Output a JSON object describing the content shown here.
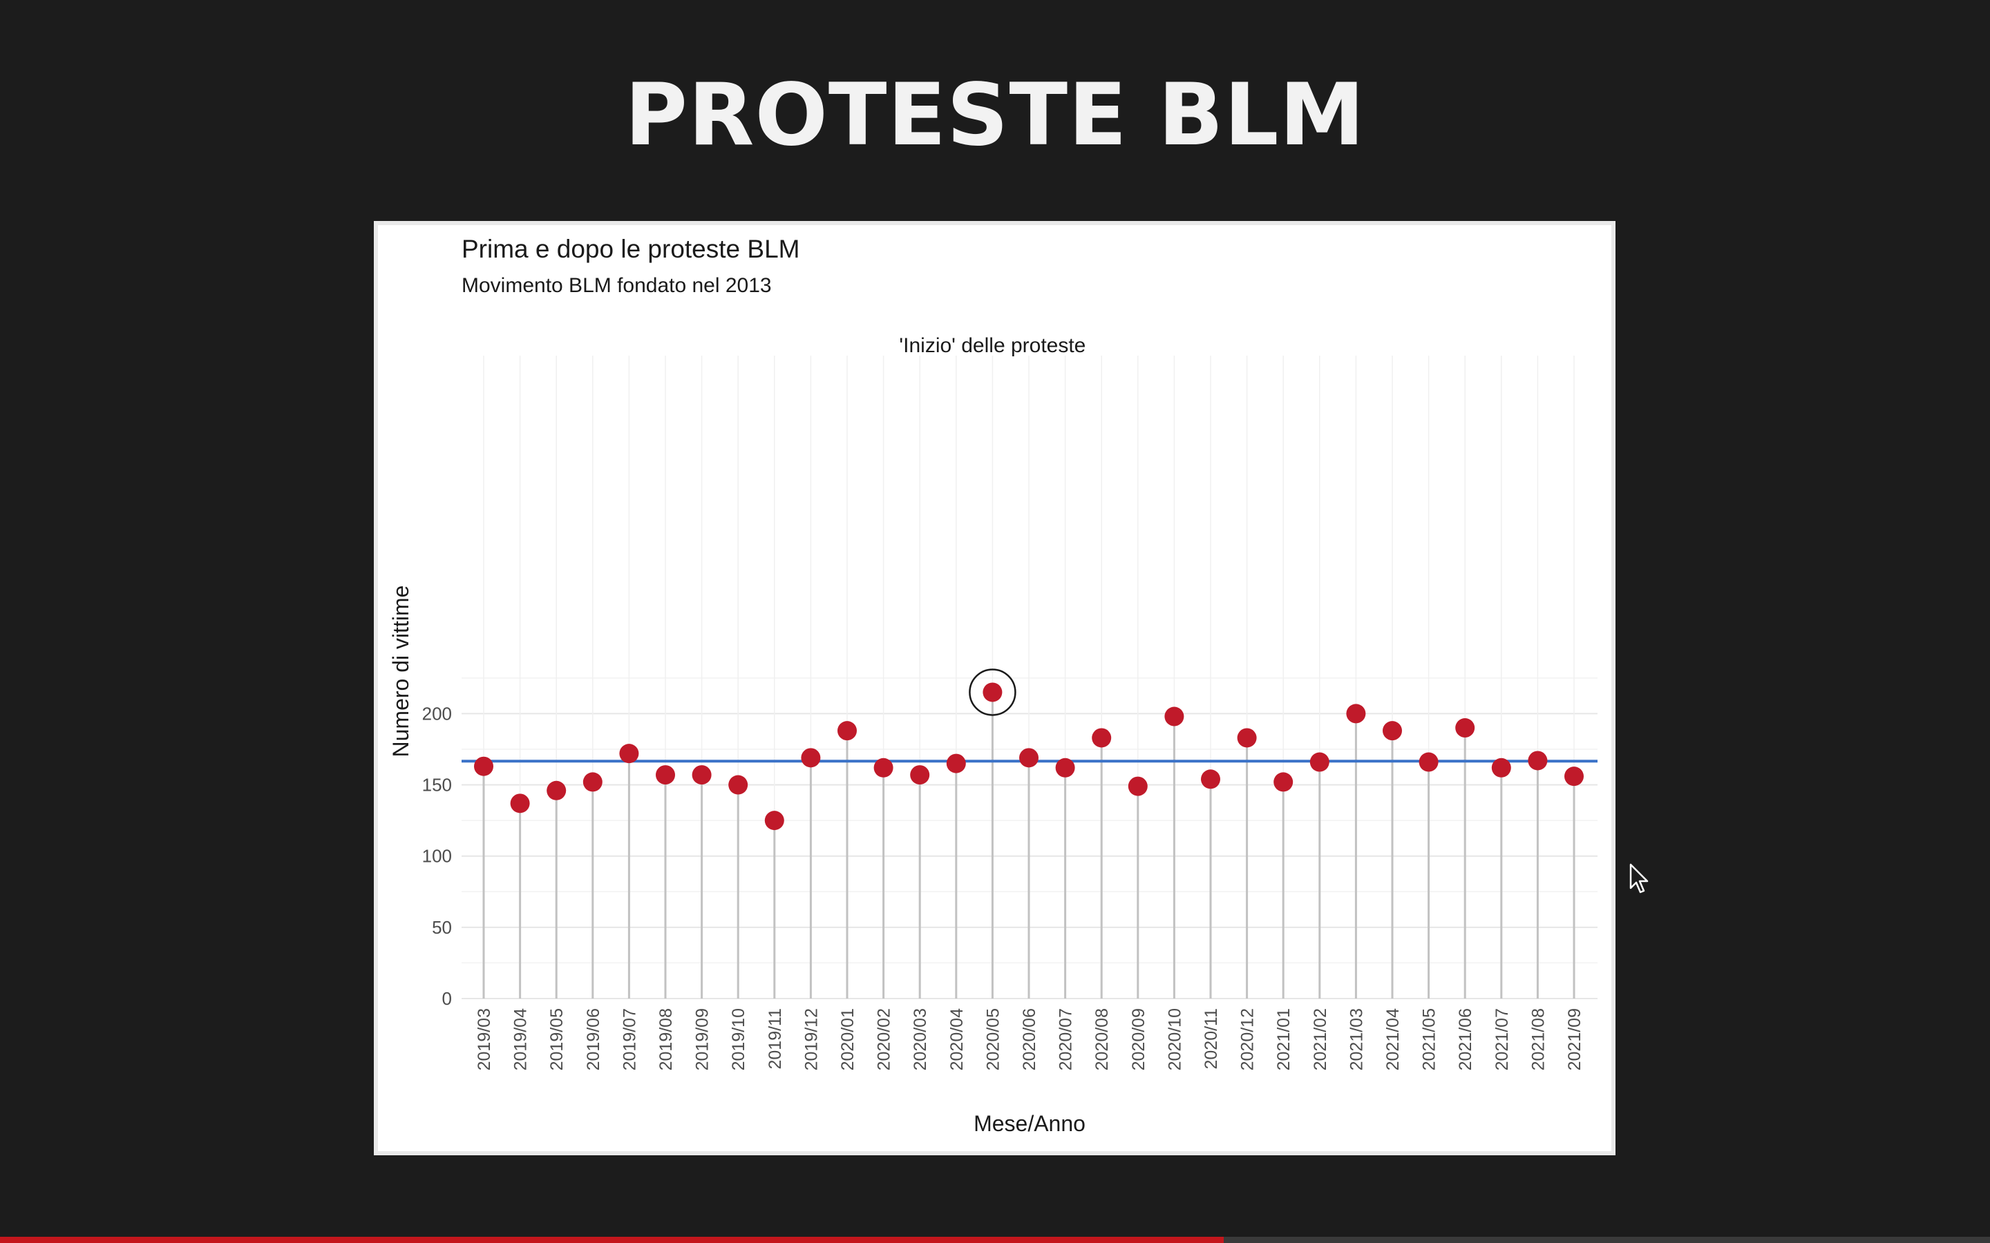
{
  "slide": {
    "title": "PROTESTE BLM"
  },
  "video": {
    "progress_fraction": 0.615
  },
  "colors": {
    "background": "#1c1c1c",
    "point": "#c01a2a",
    "mean_line": "#3a72c8",
    "stem": "#c2c2c2",
    "progress": "#c4161c"
  },
  "chart_data": {
    "type": "lollipop",
    "title": "Prima e dopo le proteste BLM",
    "subtitle": "Movimento BLM fondato nel 2013",
    "xlabel": "Mese/Anno",
    "ylabel": "Numero di vittime",
    "ylim": [
      0,
      225
    ],
    "yticks": [
      0,
      50,
      100,
      150,
      200
    ],
    "grid": true,
    "categories": [
      "2019/03",
      "2019/04",
      "2019/05",
      "2019/06",
      "2019/07",
      "2019/08",
      "2019/09",
      "2019/10",
      "2019/11",
      "2019/12",
      "2020/01",
      "2020/02",
      "2020/03",
      "2020/04",
      "2020/05",
      "2020/06",
      "2020/07",
      "2020/08",
      "2020/09",
      "2020/10",
      "2020/11",
      "2020/12",
      "2021/01",
      "2021/02",
      "2021/03",
      "2021/04",
      "2021/05",
      "2021/06",
      "2021/07",
      "2021/08",
      "2021/09"
    ],
    "values": [
      163,
      137,
      146,
      152,
      172,
      157,
      157,
      150,
      125,
      169,
      188,
      162,
      157,
      165,
      215,
      169,
      162,
      183,
      149,
      198,
      154,
      183,
      152,
      166,
      200,
      188,
      166,
      190,
      162,
      167,
      156
    ],
    "mean_line": 166.6,
    "annotation": {
      "text": "'Inizio' delle proteste",
      "category": "2020/05"
    }
  }
}
